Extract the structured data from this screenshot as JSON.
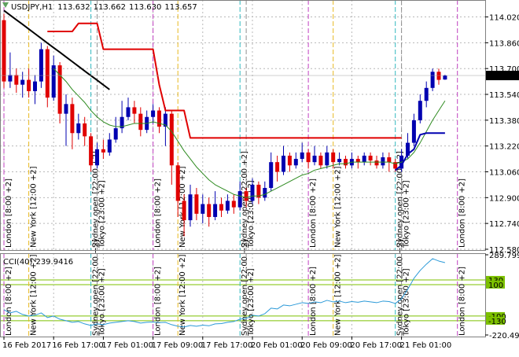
{
  "chart_data": [
    {
      "type": "candlestick",
      "header": {
        "symbol": "USDJPY,H1",
        "ohlc_labels": [
          "113.632",
          "113.662",
          "113.630",
          "113.657"
        ]
      },
      "categories": [
        "16 Feb 2017",
        null,
        null,
        null,
        null,
        null,
        null,
        null,
        "16 Feb 17:00",
        null,
        null,
        null,
        null,
        null,
        null,
        null,
        "17 Feb 01:00",
        null,
        null,
        null,
        null,
        null,
        null,
        null,
        "17 Feb 09:00",
        null,
        null,
        null,
        null,
        null,
        null,
        null,
        "17 Feb 17:00",
        null,
        null,
        null,
        null,
        null,
        null,
        null,
        "20 Feb 01:00",
        null,
        null,
        null,
        null,
        null,
        null,
        null,
        "20 Feb 09:00",
        null,
        null,
        null,
        null,
        null,
        null,
        null,
        "20 Feb 17:00",
        null,
        null,
        null,
        null,
        null,
        null,
        null,
        "21 Feb 01:00",
        null,
        null,
        null,
        null,
        null,
        null,
        null,
        null,
        null
      ],
      "open": [
        114.0,
        113.62,
        113.66,
        113.6,
        113.63,
        113.56,
        113.62,
        113.82,
        113.52,
        113.72,
        113.42,
        113.48,
        113.3,
        113.36,
        113.28,
        113.1,
        113.2,
        113.18,
        113.26,
        113.33,
        113.4,
        113.46,
        113.42,
        113.32,
        113.4,
        113.44,
        113.34,
        113.42,
        113.1,
        112.88,
        112.76,
        112.92,
        112.8,
        112.86,
        112.78,
        112.86,
        112.82,
        112.88,
        112.84,
        112.94,
        112.88,
        112.98,
        112.9,
        112.96,
        113.12,
        113.06,
        113.16,
        113.1,
        113.14,
        113.18,
        113.12,
        113.16,
        113.1,
        113.18,
        113.12,
        113.14,
        113.1,
        113.14,
        113.12,
        113.16,
        113.13,
        113.1,
        113.15,
        113.12,
        113.08,
        113.16,
        113.24,
        113.38,
        113.5,
        113.58,
        113.68,
        113.632,
        null,
        null
      ],
      "high": [
        114.04,
        113.8,
        113.7,
        113.68,
        113.7,
        113.66,
        113.86,
        113.84,
        113.78,
        113.74,
        113.54,
        113.52,
        113.42,
        113.4,
        113.3,
        113.24,
        113.26,
        113.3,
        113.4,
        113.5,
        113.52,
        113.5,
        113.46,
        113.44,
        113.48,
        113.46,
        113.46,
        113.44,
        113.12,
        112.92,
        112.98,
        112.96,
        112.92,
        112.9,
        112.94,
        112.9,
        112.92,
        112.92,
        113.0,
        112.96,
        113.02,
        113.0,
        113.0,
        113.18,
        113.16,
        113.22,
        113.18,
        113.18,
        113.24,
        113.2,
        113.22,
        113.18,
        113.22,
        113.2,
        113.18,
        113.16,
        113.18,
        113.16,
        113.18,
        113.18,
        113.16,
        113.18,
        113.18,
        113.14,
        113.2,
        113.3,
        113.42,
        113.54,
        113.62,
        113.7,
        113.7,
        113.662,
        null,
        null
      ],
      "low": [
        113.58,
        113.58,
        113.55,
        113.52,
        113.52,
        113.48,
        113.58,
        113.46,
        113.5,
        113.36,
        113.22,
        113.2,
        113.26,
        113.22,
        113.06,
        113.08,
        113.14,
        113.16,
        113.24,
        113.3,
        113.38,
        113.36,
        113.28,
        113.3,
        113.36,
        113.3,
        113.22,
        112.98,
        112.78,
        112.66,
        112.72,
        112.76,
        112.74,
        112.72,
        112.76,
        112.78,
        112.8,
        112.8,
        112.82,
        112.84,
        112.86,
        112.86,
        112.88,
        112.94,
        113.0,
        113.04,
        113.06,
        113.08,
        113.12,
        113.08,
        113.1,
        113.08,
        113.08,
        113.08,
        113.1,
        113.08,
        113.08,
        113.08,
        113.1,
        113.1,
        113.08,
        113.08,
        113.06,
        113.06,
        113.06,
        113.14,
        113.22,
        113.36,
        113.46,
        113.56,
        113.6,
        113.63,
        null,
        null
      ],
      "close": [
        113.62,
        113.66,
        113.6,
        113.63,
        113.56,
        113.62,
        113.82,
        113.52,
        113.72,
        113.42,
        113.48,
        113.3,
        113.36,
        113.28,
        113.1,
        113.2,
        113.18,
        113.26,
        113.33,
        113.4,
        113.46,
        113.42,
        113.32,
        113.4,
        113.44,
        113.34,
        113.42,
        113.1,
        112.88,
        112.76,
        112.92,
        112.8,
        112.86,
        112.78,
        112.86,
        112.82,
        112.88,
        112.84,
        112.94,
        112.88,
        112.98,
        112.9,
        112.96,
        113.12,
        113.06,
        113.16,
        113.1,
        113.14,
        113.18,
        113.12,
        113.16,
        113.1,
        113.18,
        113.12,
        113.14,
        113.1,
        113.14,
        113.12,
        113.16,
        113.13,
        113.1,
        113.15,
        113.12,
        113.08,
        113.16,
        113.24,
        113.38,
        113.5,
        113.58,
        113.68,
        113.63,
        113.657,
        null,
        null
      ],
      "bull_color": "#0000b0",
      "bear_color": "#e00000",
      "series": [
        {
          "color": "#2e8b20",
          "width": 1,
          "values": [
            null,
            null,
            null,
            null,
            null,
            null,
            null,
            null,
            113.7,
            113.66,
            113.62,
            113.57,
            113.53,
            113.49,
            113.44,
            113.4,
            113.37,
            113.35,
            113.34,
            113.34,
            113.35,
            113.36,
            113.36,
            113.36,
            113.37,
            113.36,
            113.35,
            113.31,
            113.25,
            113.19,
            113.14,
            113.09,
            113.05,
            113.01,
            112.98,
            112.96,
            112.94,
            112.92,
            112.91,
            112.9,
            112.91,
            112.91,
            112.92,
            112.94,
            112.96,
            112.98,
            113.0,
            113.02,
            113.04,
            113.05,
            113.07,
            113.08,
            113.09,
            113.1,
            113.11,
            113.11,
            113.12,
            113.12,
            113.12,
            113.12,
            113.12,
            113.12,
            113.12,
            113.11,
            113.12,
            113.14,
            113.18,
            113.24,
            113.31,
            113.38,
            113.44,
            113.5,
            null,
            null
          ]
        },
        {
          "color": "#e00000",
          "width": 2,
          "values": [
            null,
            null,
            null,
            null,
            null,
            null,
            null,
            113.93,
            113.93,
            113.93,
            113.93,
            113.93,
            113.98,
            113.98,
            113.98,
            113.98,
            113.82,
            113.82,
            113.82,
            113.82,
            113.82,
            113.82,
            113.82,
            113.82,
            113.82,
            113.6,
            113.44,
            113.44,
            113.44,
            113.44,
            113.27,
            113.27,
            113.27,
            113.27,
            113.27,
            113.27,
            113.27,
            113.27,
            113.27,
            113.27,
            113.27,
            113.27,
            113.27,
            113.27,
            113.27,
            113.27,
            113.27,
            113.27,
            113.27,
            113.27,
            113.27,
            113.27,
            113.27,
            113.27,
            113.27,
            113.27,
            113.27,
            113.27,
            113.27,
            113.27,
            113.27,
            113.27,
            113.27,
            113.27,
            113.27,
            null,
            null,
            null,
            null,
            null,
            null,
            null,
            null,
            null
          ]
        },
        {
          "color": "#000000",
          "width": 2,
          "values": [
            114.06,
            114.031,
            114.002,
            113.974,
            113.945,
            113.916,
            113.887,
            113.858,
            113.829,
            113.801,
            113.772,
            113.743,
            113.714,
            113.685,
            113.656,
            113.628,
            113.599,
            113.57,
            null,
            null,
            null,
            null,
            null,
            null,
            null,
            null,
            null,
            null,
            null,
            null,
            null,
            null,
            null,
            null,
            null,
            null,
            null,
            null,
            null,
            null,
            null,
            null,
            null,
            null,
            null,
            null,
            null,
            null,
            null,
            null,
            null,
            null,
            null,
            null,
            null,
            null,
            null,
            null,
            null,
            null,
            null,
            null,
            null,
            null,
            null,
            null,
            null,
            null,
            null,
            null,
            null,
            null,
            null,
            null
          ]
        },
        {
          "color": "#0000b0",
          "width": 2,
          "values": [
            null,
            null,
            null,
            null,
            null,
            null,
            null,
            null,
            null,
            null,
            null,
            null,
            null,
            null,
            null,
            null,
            null,
            null,
            null,
            null,
            null,
            null,
            null,
            null,
            null,
            null,
            null,
            null,
            null,
            null,
            null,
            null,
            null,
            null,
            null,
            null,
            null,
            null,
            null,
            null,
            null,
            null,
            null,
            null,
            null,
            null,
            null,
            null,
            null,
            null,
            null,
            null,
            null,
            null,
            null,
            null,
            null,
            null,
            null,
            null,
            null,
            null,
            null,
            113.07,
            113.1,
            113.17,
            113.2,
            113.29,
            113.3,
            113.3,
            113.3,
            113.3,
            null,
            null
          ]
        }
      ],
      "session_labels": [
        "London [8:00 +2]",
        null,
        null,
        null,
        "New York [12:00 +2]",
        null,
        null,
        null,
        null,
        null,
        null,
        null,
        null,
        null,
        "Sydney open [22:00 +2]",
        "Tokyo [23:00 +2]",
        null,
        null,
        null,
        null,
        null,
        null,
        null,
        null,
        "London [8:00 +2]",
        null,
        null,
        null,
        "New York [12:00 +2]",
        null,
        null,
        null,
        null,
        null,
        null,
        null,
        null,
        null,
        "Sydney open [22:00 +2]",
        "Tokyo [23:00 +2]",
        null,
        null,
        null,
        null,
        null,
        null,
        null,
        null,
        null,
        "London [8:00 +2]",
        null,
        null,
        null,
        "New York [12:00 +2]",
        null,
        null,
        null,
        null,
        null,
        null,
        null,
        null,
        null,
        "Sydney open [22:00 +2]",
        "Tokyo [23:00 +2]",
        null,
        null,
        null,
        null,
        null,
        null,
        null,
        null,
        "London [8:00 +2]"
      ],
      "session_colors": [
        "#c040c0",
        null,
        null,
        null,
        "#e8b820",
        null,
        null,
        null,
        null,
        null,
        null,
        null,
        null,
        null,
        "#30b8c0",
        "#909090",
        null,
        null,
        null,
        null,
        null,
        null,
        null,
        null,
        "#c040c0",
        null,
        null,
        null,
        "#e8b820",
        null,
        null,
        null,
        null,
        null,
        null,
        null,
        null,
        null,
        "#30b8c0",
        "#909090",
        null,
        null,
        null,
        null,
        null,
        null,
        null,
        null,
        null,
        "#c040c0",
        null,
        null,
        null,
        "#e8b820",
        null,
        null,
        null,
        null,
        null,
        null,
        null,
        null,
        null,
        "#30b8c0",
        "#909090",
        null,
        null,
        null,
        null,
        null,
        null,
        null,
        null,
        "#c040c0"
      ],
      "ylim": [
        112.575,
        114.125
      ],
      "yticks": [
        {
          "value": 114.02,
          "label": "114.020"
        },
        {
          "value": 113.86,
          "label": "113.860"
        },
        {
          "value": 113.7,
          "label": "113.700"
        },
        {
          "value": 113.54,
          "label": "113.540"
        },
        {
          "value": 113.38,
          "label": "113.380"
        },
        {
          "value": 113.22,
          "label": "113.220"
        },
        {
          "value": 113.06,
          "label": "113.060"
        },
        {
          "value": 112.9,
          "label": "112.900"
        },
        {
          "value": 112.74,
          "label": "112.740"
        },
        {
          "value": 112.58,
          "label": "112.580"
        }
      ],
      "grid": true
    },
    {
      "type": "line",
      "title": "CCI(40)",
      "color": "#2c9ad8",
      "values": [
        -60,
        -80,
        -70,
        -90,
        -100,
        -95,
        -80,
        -110,
        -100,
        -120,
        -130,
        -140,
        -135,
        -150,
        -160,
        -150,
        -155,
        -145,
        -140,
        -135,
        -130,
        -135,
        -145,
        -140,
        -138,
        -142,
        -140,
        -155,
        -165,
        -170,
        -160,
        -165,
        -158,
        -162,
        -150,
        -148,
        -140,
        -135,
        -120,
        -115,
        -95,
        -100,
        -85,
        -50,
        -55,
        -30,
        -35,
        -25,
        -15,
        -20,
        -10,
        -15,
        0,
        -10,
        -5,
        -15,
        -8,
        -12,
        -5,
        -10,
        -15,
        -5,
        -8,
        -20,
        10,
        70,
        140,
        190,
        230,
        265,
        250,
        239.9416,
        null,
        null
      ],
      "ylim": [
        -220.4932,
        289.7995
      ],
      "yticks": [
        -220.4932,
        289.7995
      ],
      "levels": [
        130,
        100,
        -100,
        -130
      ],
      "level_color": "#7cc000"
    }
  ]
}
